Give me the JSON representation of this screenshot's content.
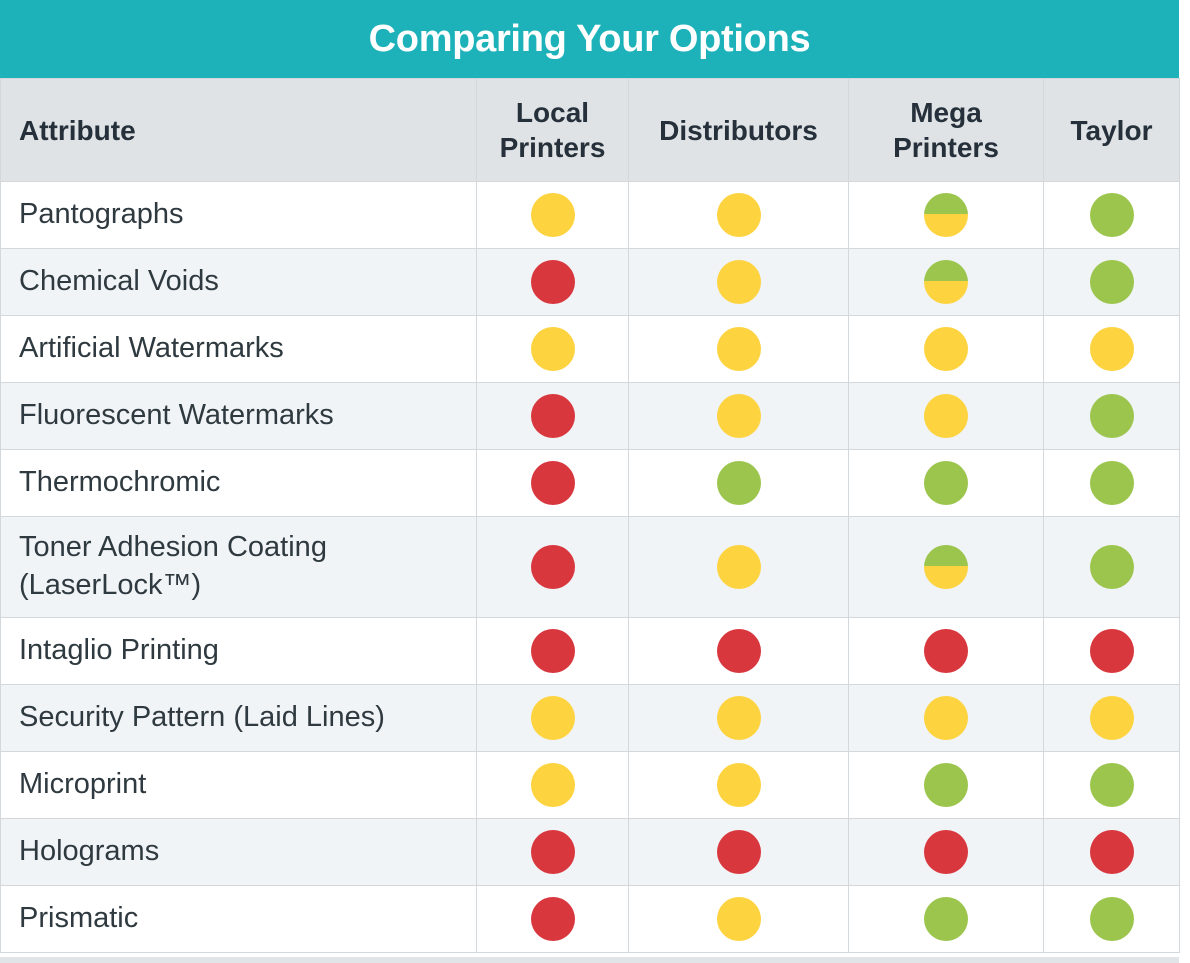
{
  "title": "Comparing Your Options",
  "colors": {
    "banner": "#1db2b9",
    "red": "#d9373e",
    "yellow": "#fdd33f",
    "green": "#9cc54e",
    "header_bg": "#dfe3e6",
    "stripe_bg": "#f1f4f7"
  },
  "legend_values": [
    "red",
    "yellow",
    "green",
    "green-yellow"
  ],
  "columns": {
    "attribute": "Attribute",
    "local_line1": "Local",
    "local_line2": "Printers",
    "distributors": "Distributors",
    "mega_line1": "Mega",
    "mega_line2": "Printers",
    "taylor": "Taylor"
  },
  "rows": [
    {
      "attribute": "Pantographs",
      "ratings": [
        "yellow",
        "yellow",
        "green-yellow",
        "green"
      ]
    },
    {
      "attribute": "Chemical Voids",
      "ratings": [
        "red",
        "yellow",
        "green-yellow",
        "green"
      ]
    },
    {
      "attribute": "Artificial Watermarks",
      "ratings": [
        "yellow",
        "yellow",
        "yellow",
        "yellow"
      ]
    },
    {
      "attribute": "Fluorescent Watermarks",
      "ratings": [
        "red",
        "yellow",
        "yellow",
        "green"
      ]
    },
    {
      "attribute": "Thermochromic",
      "ratings": [
        "red",
        "green",
        "green",
        "green"
      ]
    },
    {
      "attribute": "Toner Adhesion Coating",
      "attribute_line2": "(LaserLock™)",
      "ratings": [
        "red",
        "yellow",
        "green-yellow",
        "green"
      ]
    },
    {
      "attribute": "Intaglio Printing",
      "ratings": [
        "red",
        "red",
        "red",
        "red"
      ]
    },
    {
      "attribute": "Security Pattern (Laid Lines)",
      "ratings": [
        "yellow",
        "yellow",
        "yellow",
        "yellow"
      ]
    },
    {
      "attribute": "Microprint",
      "ratings": [
        "yellow",
        "yellow",
        "green",
        "green"
      ]
    },
    {
      "attribute": "Holograms",
      "ratings": [
        "red",
        "red",
        "red",
        "red"
      ]
    },
    {
      "attribute": "Prismatic",
      "ratings": [
        "red",
        "yellow",
        "green",
        "green"
      ]
    }
  ]
}
